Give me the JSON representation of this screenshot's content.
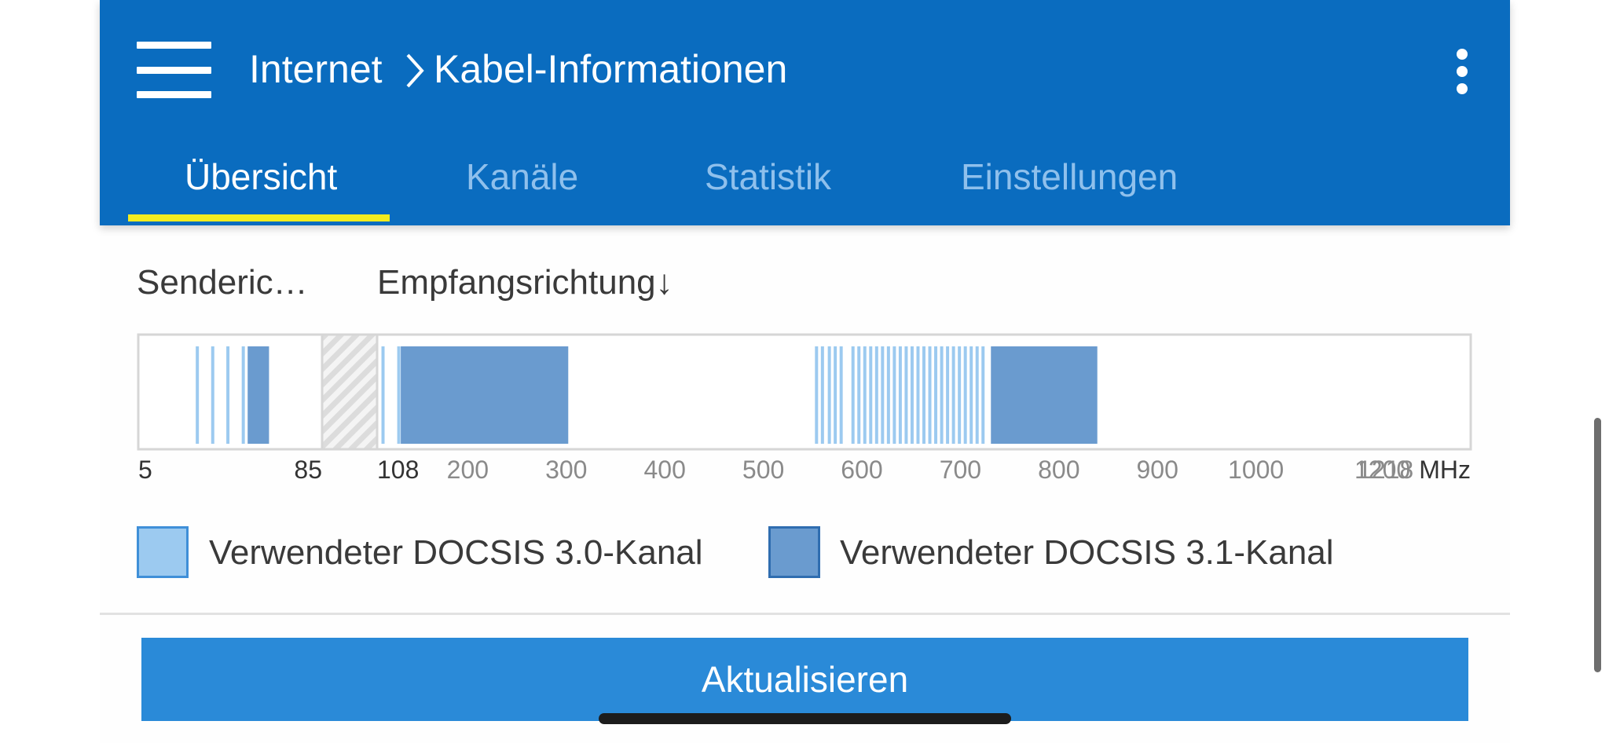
{
  "header": {
    "crumb_root": "Internet",
    "crumb_page": "Kabel-Informationen",
    "tabs": [
      "Übersicht",
      "Kanäle",
      "Statistik",
      "Einstellungen"
    ],
    "active_tab": "Übersicht"
  },
  "direction": {
    "upstream_label": "Senderic…",
    "downstream_label": "Empfangsrichtung↓"
  },
  "chart_data": {
    "type": "bar",
    "unit": "MHz",
    "upstream_ticks": [
      "5",
      "85"
    ],
    "downstream_ticks": [
      "108",
      "200",
      "300",
      "400",
      "500",
      "600",
      "700",
      "800",
      "900",
      "1000",
      "1218"
    ],
    "overlap_tick": "1200",
    "unit_label": "MHz",
    "upstream_range_mhz": [
      5,
      85
    ],
    "guard_band_mhz": [
      85,
      108
    ],
    "downstream_range_mhz": [
      108,
      1218
    ],
    "docsis30_channels_mhz": [
      30.7,
      37.4,
      44.0,
      50.7,
      114,
      130,
      554,
      560,
      567,
      573,
      579,
      591,
      597,
      603,
      609,
      615,
      621,
      627,
      633,
      639,
      645,
      651,
      657,
      663,
      669,
      675,
      681,
      687,
      693,
      699,
      705,
      711,
      717,
      723
    ],
    "docsis31_blocks_mhz": [
      [
        52.6,
        61.9
      ],
      [
        132,
        302
      ],
      [
        731,
        839
      ]
    ]
  },
  "legend": [
    {
      "label": "Verwendeter DOCSIS 3.0-Kanal",
      "fill": "#9ccaf0",
      "border": "#3f8fd8"
    },
    {
      "label": "Verwendeter DOCSIS 3.1-Kanal",
      "fill": "#6a9bcf",
      "border": "#2f6db0"
    }
  ],
  "button": {
    "label": "Aktualisieren"
  }
}
